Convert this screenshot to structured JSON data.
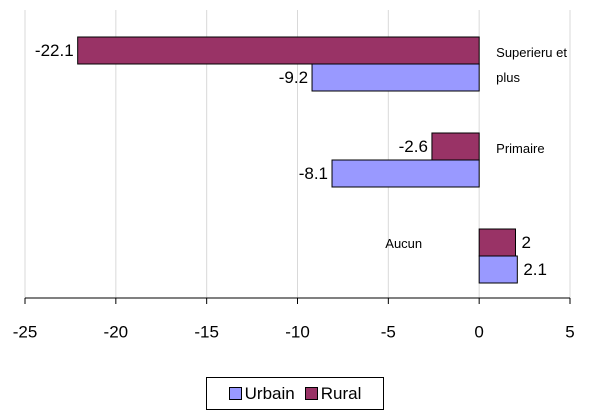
{
  "chart_data": {
    "type": "hbar",
    "categories": [
      "Superieru et plus",
      "Primaire",
      "Aucun"
    ],
    "series": [
      {
        "name": "Rural",
        "color": "#993366",
        "values": [
          -22.1,
          -2.6,
          2
        ]
      },
      {
        "name": "Urbain",
        "color": "#9999ff",
        "values": [
          -9.2,
          -8.1,
          2.1
        ]
      }
    ],
    "legend_order": [
      "Urbain",
      "Rural"
    ],
    "xlim": [
      -25,
      5
    ],
    "xticks": [
      -25,
      -20,
      -15,
      -10,
      -5,
      0,
      5
    ],
    "grid": true,
    "legend": "bottom"
  }
}
